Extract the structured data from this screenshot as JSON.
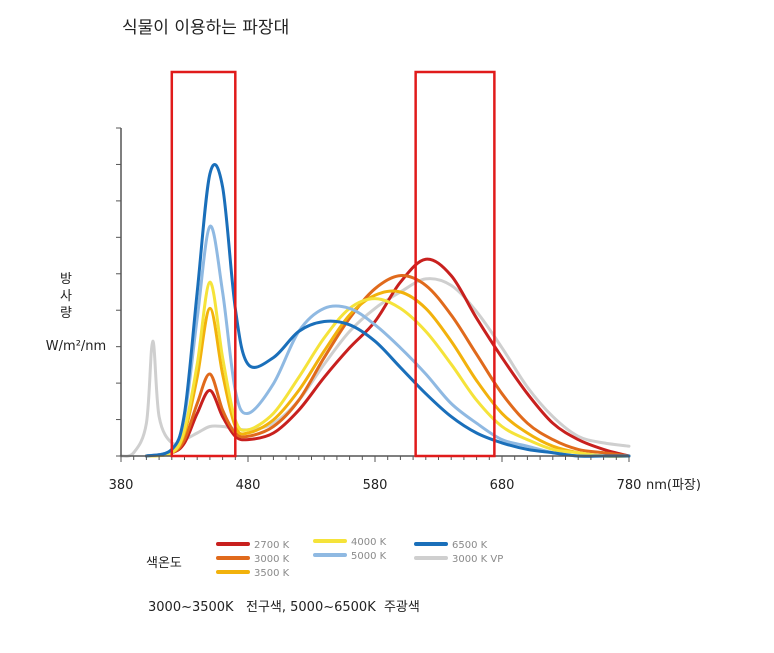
{
  "title": "식물이 이용하는 파장대",
  "ylabel": {
    "line1": "방",
    "line2": "사",
    "line3": "량",
    "unit": "W/m²/nm"
  },
  "xunit_label": "nm(파장)",
  "legend_title": "색온도",
  "note": "3000~3500K   전구색, 5000~6500K  주광색",
  "colors": {
    "2700 K": "#c8201e",
    "3000 K": "#e06a1c",
    "3500 K": "#f2b20c",
    "4000 K": "#f5e33a",
    "5000 K": "#8fb9e2",
    "6500 K": "#1a6fba",
    "3000 K VP": "#cfcfcf",
    "highlight": "#e01b1b"
  },
  "chart_data": {
    "type": "line",
    "title": "식물이 이용하는 파장대",
    "xlabel": "nm(파장)",
    "ylabel": "방사량 W/m²/nm",
    "xlim": [
      380,
      780
    ],
    "ylim": [
      0,
      1
    ],
    "x_ticks": [
      "380",
      "480",
      "580",
      "680",
      "780"
    ],
    "grid": false,
    "legend_position": "bottom",
    "series": [
      {
        "name": "2700 K",
        "x": [
          400,
          420,
          430,
          440,
          450,
          460,
          470,
          480,
          500,
          520,
          540,
          560,
          580,
          600,
          620,
          640,
          660,
          680,
          700,
          720,
          740,
          760,
          780
        ],
        "y": [
          0.0,
          0.01,
          0.04,
          0.13,
          0.2,
          0.12,
          0.06,
          0.05,
          0.07,
          0.14,
          0.24,
          0.33,
          0.41,
          0.53,
          0.6,
          0.55,
          0.42,
          0.3,
          0.19,
          0.1,
          0.05,
          0.02,
          0.0
        ]
      },
      {
        "name": "3000 K",
        "x": [
          400,
          420,
          430,
          440,
          450,
          460,
          470,
          480,
          500,
          520,
          540,
          560,
          580,
          600,
          620,
          640,
          660,
          680,
          700,
          720,
          740,
          760,
          780
        ],
        "y": [
          0.0,
          0.01,
          0.05,
          0.16,
          0.25,
          0.14,
          0.07,
          0.06,
          0.09,
          0.17,
          0.3,
          0.42,
          0.51,
          0.55,
          0.52,
          0.43,
          0.31,
          0.19,
          0.1,
          0.05,
          0.02,
          0.01,
          0.0
        ]
      },
      {
        "name": "3500 K",
        "x": [
          400,
          420,
          430,
          440,
          450,
          460,
          470,
          480,
          500,
          520,
          540,
          560,
          580,
          600,
          620,
          640,
          660,
          680,
          700,
          720,
          740,
          760,
          780
        ],
        "y": [
          0.0,
          0.01,
          0.07,
          0.24,
          0.45,
          0.25,
          0.09,
          0.07,
          0.11,
          0.2,
          0.32,
          0.43,
          0.49,
          0.5,
          0.45,
          0.35,
          0.23,
          0.13,
          0.07,
          0.03,
          0.01,
          0.0,
          0.0
        ]
      },
      {
        "name": "4000 K",
        "x": [
          400,
          420,
          430,
          440,
          450,
          460,
          470,
          480,
          500,
          520,
          540,
          560,
          580,
          600,
          620,
          640,
          660,
          680,
          700,
          720,
          740,
          760,
          780
        ],
        "y": [
          0.0,
          0.01,
          0.08,
          0.28,
          0.53,
          0.3,
          0.11,
          0.08,
          0.13,
          0.24,
          0.36,
          0.45,
          0.48,
          0.45,
          0.38,
          0.28,
          0.17,
          0.09,
          0.05,
          0.02,
          0.01,
          0.0,
          0.0
        ]
      },
      {
        "name": "5000 K",
        "x": [
          400,
          420,
          430,
          440,
          450,
          460,
          470,
          480,
          500,
          520,
          540,
          560,
          580,
          600,
          620,
          640,
          660,
          680,
          700,
          720,
          740,
          760,
          780
        ],
        "y": [
          0.0,
          0.02,
          0.12,
          0.42,
          0.7,
          0.5,
          0.2,
          0.13,
          0.22,
          0.38,
          0.45,
          0.45,
          0.4,
          0.33,
          0.25,
          0.16,
          0.1,
          0.05,
          0.03,
          0.01,
          0.0,
          0.0,
          0.0
        ]
      },
      {
        "name": "6500 K",
        "x": [
          400,
          420,
          430,
          440,
          450,
          460,
          470,
          480,
          500,
          520,
          540,
          560,
          580,
          600,
          620,
          640,
          660,
          680,
          700,
          720,
          740,
          760,
          780
        ],
        "y": [
          0.0,
          0.02,
          0.13,
          0.5,
          0.86,
          0.82,
          0.45,
          0.28,
          0.3,
          0.38,
          0.41,
          0.4,
          0.35,
          0.27,
          0.19,
          0.12,
          0.07,
          0.04,
          0.02,
          0.01,
          0.0,
          0.0,
          0.0
        ]
      },
      {
        "name": "3000 K VP",
        "x": [
          380,
          390,
          400,
          405,
          410,
          420,
          430,
          440,
          450,
          460,
          480,
          500,
          520,
          540,
          560,
          580,
          600,
          620,
          640,
          660,
          680,
          700,
          720,
          740,
          760,
          780
        ],
        "y": [
          0.0,
          0.01,
          0.1,
          0.35,
          0.12,
          0.04,
          0.05,
          0.07,
          0.09,
          0.09,
          0.08,
          0.1,
          0.17,
          0.28,
          0.38,
          0.45,
          0.5,
          0.54,
          0.52,
          0.44,
          0.33,
          0.21,
          0.12,
          0.06,
          0.04,
          0.03
        ]
      }
    ],
    "highlight_ranges_nm": [
      [
        420,
        470
      ],
      [
        612,
        674
      ]
    ]
  }
}
